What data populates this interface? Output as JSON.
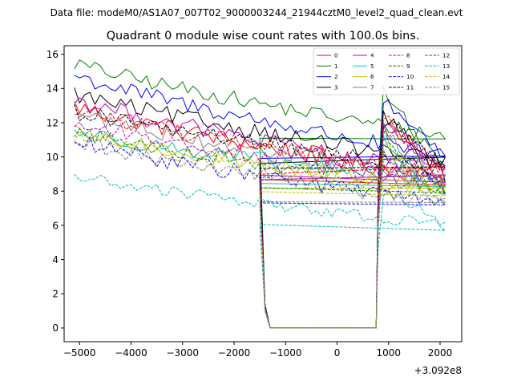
{
  "file_caption": "Data file: modeM0/AS1A07_007T02_9000003244_21944cztM0_level2_quad_clean.evt",
  "chart_data": {
    "type": "line",
    "title": "Quadrant 0 module wise count rates with 100.0s bins.",
    "xlabel": "",
    "ylabel": "",
    "x_offset_label": "+3.092e8",
    "xlim": [
      -5300,
      2420
    ],
    "ylim": [
      -0.8,
      16.5
    ],
    "xticks": [
      -5000,
      -4000,
      -3000,
      -2000,
      -1000,
      0,
      1000,
      2000
    ],
    "xtick_labels": [
      "−5000",
      "−4000",
      "−3000",
      "−2000",
      "−1000",
      "0",
      "1000",
      "2000"
    ],
    "yticks": [
      0,
      2,
      4,
      6,
      8,
      10,
      12,
      14,
      16
    ],
    "ytick_labels": [
      "0",
      "2",
      "4",
      "6",
      "8",
      "10",
      "12",
      "14",
      "16"
    ],
    "legend_position": "top-right",
    "legend_columns": 4,
    "gap_x": [
      -1300,
      760
    ],
    "x_first": [
      -5100,
      2100
    ],
    "x_second": [
      800,
      2100
    ],
    "bin_width": 100,
    "edge_values": {
      "first_tail": [
        10,
        1.2,
        0
      ],
      "second_head": [
        0,
        7.5
      ]
    },
    "series": [
      {
        "name": "0",
        "color": "#ff0000",
        "style": "solid",
        "start1": 13.0,
        "end1": 8.8,
        "start2": 12.2,
        "end2": 9.0,
        "noise": 0.55
      },
      {
        "name": "1",
        "color": "#008000",
        "style": "solid",
        "start1": 15.5,
        "end1": 11.2,
        "start2": 14.0,
        "end2": 9.4,
        "noise": 0.45
      },
      {
        "name": "2",
        "color": "#0000ff",
        "style": "solid",
        "start1": 14.8,
        "end1": 10.0,
        "start2": 13.5,
        "end2": 10.2,
        "noise": 0.5
      },
      {
        "name": "3",
        "color": "#000000",
        "style": "solid",
        "start1": 13.7,
        "end1": 9.7,
        "start2": 12.5,
        "end2": 9.0,
        "noise": 0.5
      },
      {
        "name": "4",
        "color": "#bf00bf",
        "style": "solid",
        "start1": 13.4,
        "end1": 9.0,
        "start2": 12.0,
        "end2": 9.0,
        "noise": 0.5
      },
      {
        "name": "5",
        "color": "#00bfbf",
        "style": "solid",
        "start1": 11.5,
        "end1": 8.5,
        "start2": 11.0,
        "end2": 7.8,
        "noise": 0.45
      },
      {
        "name": "6",
        "color": "#bfbf00",
        "style": "solid",
        "start1": 11.4,
        "end1": 8.2,
        "start2": 10.8,
        "end2": 8.2,
        "noise": 0.45
      },
      {
        "name": "7",
        "color": "#808080",
        "style": "solid",
        "start1": 12.6,
        "end1": 8.7,
        "start2": 11.5,
        "end2": 8.3,
        "noise": 0.5
      },
      {
        "name": "8",
        "color": "#ff0000",
        "style": "dashed",
        "start1": 12.8,
        "end1": 9.0,
        "start2": 12.3,
        "end2": 9.0,
        "noise": 0.5
      },
      {
        "name": "9",
        "color": "#008000",
        "style": "dashed",
        "start1": 11.5,
        "end1": 8.2,
        "start2": 11.2,
        "end2": 8.3,
        "noise": 0.45
      },
      {
        "name": "10",
        "color": "#0000ff",
        "style": "dashed",
        "start1": 10.9,
        "end1": 7.3,
        "start2": 10.4,
        "end2": 8.0,
        "noise": 0.5
      },
      {
        "name": "11",
        "color": "#000000",
        "style": "dashed",
        "start1": 12.7,
        "end1": 9.3,
        "start2": 12.2,
        "end2": 9.3,
        "noise": 0.5
      },
      {
        "name": "12",
        "color": "#bf00bf",
        "style": "dashed",
        "start1": 12.0,
        "end1": 8.6,
        "start2": 11.8,
        "end2": 9.4,
        "noise": 0.5
      },
      {
        "name": "13",
        "color": "#00bfbf",
        "style": "dashed",
        "start1": 8.9,
        "end1": 6.0,
        "start2": 8.0,
        "end2": 6.2,
        "noise": 0.35
      },
      {
        "name": "14",
        "color": "#bfbf00",
        "style": "dashed",
        "start1": 11.3,
        "end1": 7.9,
        "start2": 10.3,
        "end2": 8.2,
        "noise": 0.45
      },
      {
        "name": "15",
        "color": "#808080",
        "style": "dashed",
        "start1": 10.9,
        "end1": 7.3,
        "start2": 10.0,
        "end2": 7.2,
        "noise": 0.45
      }
    ]
  }
}
